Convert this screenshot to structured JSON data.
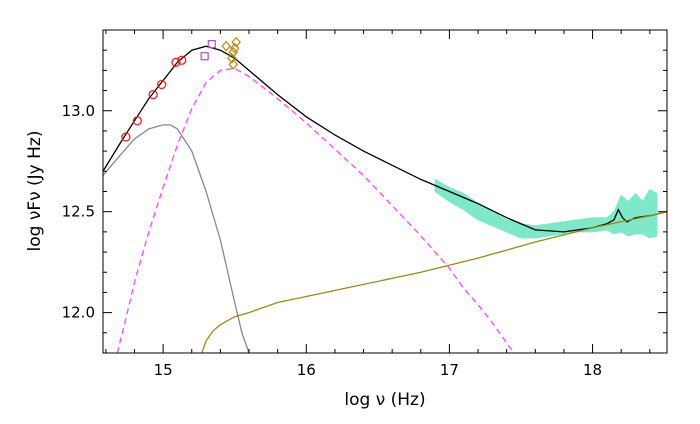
{
  "chart_data": {
    "type": "scatter",
    "xlabel": "log ν (Hz)",
    "ylabel": "log νFν (Jy Hz)",
    "xlim": [
      14.58,
      18.52
    ],
    "ylim": [
      11.8,
      13.4
    ],
    "x_ticks": [
      15,
      16,
      17,
      18
    ],
    "x_tick_labels": [
      "15",
      "16",
      "17",
      "18"
    ],
    "y_ticks": [
      12.0,
      12.5,
      13.0
    ],
    "y_tick_labels": [
      "12.0",
      "12.5",
      "13.0"
    ],
    "grid": false,
    "legend": "none",
    "series": [
      {
        "kind": "points",
        "marker": "circle",
        "color": "#e8231f",
        "x": [
          14.74,
          14.82,
          14.93,
          14.99,
          15.09,
          15.13
        ],
        "y": [
          12.87,
          12.95,
          13.08,
          13.13,
          13.24,
          13.25
        ]
      },
      {
        "kind": "points",
        "marker": "square",
        "color": "#b44fc8",
        "x": [
          15.29,
          15.34
        ],
        "y": [
          13.27,
          13.33
        ]
      },
      {
        "kind": "points",
        "marker": "diamond",
        "color": "#b8860b",
        "x": [
          15.44,
          15.48,
          15.49,
          15.49,
          15.5,
          15.51
        ],
        "y": [
          13.32,
          13.26,
          13.23,
          13.29,
          13.31,
          13.34
        ]
      },
      {
        "kind": "band",
        "color": "#7fe8c8",
        "x": [
          16.9,
          17.0,
          17.1,
          17.2,
          17.3,
          17.4,
          17.5,
          17.6,
          17.7,
          17.8,
          17.9,
          18.0,
          18.1,
          18.15,
          18.2,
          18.25,
          18.3,
          18.35,
          18.4,
          18.45
        ],
        "y_low": [
          12.6,
          12.55,
          12.51,
          12.46,
          12.43,
          12.4,
          12.37,
          12.37,
          12.38,
          12.39,
          12.4,
          12.4,
          12.41,
          12.39,
          12.4,
          12.38,
          12.39,
          12.39,
          12.37,
          12.38
        ],
        "y_high": [
          12.66,
          12.62,
          12.59,
          12.54,
          12.5,
          12.46,
          12.44,
          12.43,
          12.44,
          12.45,
          12.46,
          12.47,
          12.47,
          12.5,
          12.58,
          12.55,
          12.59,
          12.55,
          12.61,
          12.59
        ]
      },
      {
        "kind": "line",
        "style": "solid",
        "color": "#000000",
        "x": [
          14.58,
          14.7,
          14.8,
          14.9,
          15.0,
          15.1,
          15.2,
          15.3,
          15.4,
          15.5,
          15.6,
          15.8,
          16.0,
          16.2,
          16.4,
          16.6,
          16.8,
          17.0,
          17.2,
          17.4,
          17.6,
          17.8,
          18.0,
          18.1,
          18.15,
          18.18,
          18.21,
          18.24,
          18.3,
          18.4,
          18.52
        ],
        "y": [
          12.7,
          12.84,
          12.95,
          13.06,
          13.15,
          13.24,
          13.3,
          13.32,
          13.3,
          13.26,
          13.2,
          13.08,
          12.97,
          12.88,
          12.8,
          12.73,
          12.66,
          12.6,
          12.54,
          12.47,
          12.41,
          12.4,
          12.42,
          12.44,
          12.46,
          12.51,
          12.47,
          12.45,
          12.47,
          12.48,
          12.5
        ]
      },
      {
        "kind": "line",
        "style": "dashed",
        "color": "#ff44ff",
        "x": [
          14.68,
          14.75,
          14.8,
          14.9,
          15.0,
          15.1,
          15.2,
          15.3,
          15.4,
          15.5,
          15.6,
          15.8,
          16.0,
          16.2,
          16.4,
          16.6,
          16.8,
          17.0,
          17.1,
          17.2,
          17.3,
          17.4,
          17.45
        ],
        "y": [
          11.8,
          12.0,
          12.15,
          12.4,
          12.62,
          12.83,
          13.01,
          13.14,
          13.2,
          13.21,
          13.17,
          13.06,
          12.94,
          12.81,
          12.68,
          12.53,
          12.38,
          12.22,
          12.12,
          12.04,
          11.95,
          11.85,
          11.8
        ]
      },
      {
        "kind": "line",
        "style": "solid",
        "color": "#888888",
        "x": [
          14.58,
          14.7,
          14.8,
          14.9,
          15.0,
          15.05,
          15.1,
          15.2,
          15.3,
          15.4,
          15.5,
          15.55,
          15.6
        ],
        "y": [
          12.68,
          12.78,
          12.86,
          12.91,
          12.93,
          12.93,
          12.91,
          12.8,
          12.6,
          12.36,
          12.05,
          11.9,
          11.8
        ]
      },
      {
        "kind": "line",
        "style": "solid",
        "color": "#9a8a1c",
        "x": [
          15.27,
          15.3,
          15.35,
          15.4,
          15.5,
          15.6,
          15.8,
          16.0,
          16.4,
          16.8,
          17.2,
          17.6,
          18.0,
          18.4,
          18.52
        ],
        "y": [
          11.8,
          11.86,
          11.91,
          11.94,
          11.98,
          12.0,
          12.05,
          12.08,
          12.14,
          12.2,
          12.27,
          12.35,
          12.42,
          12.48,
          12.5
        ]
      }
    ]
  }
}
